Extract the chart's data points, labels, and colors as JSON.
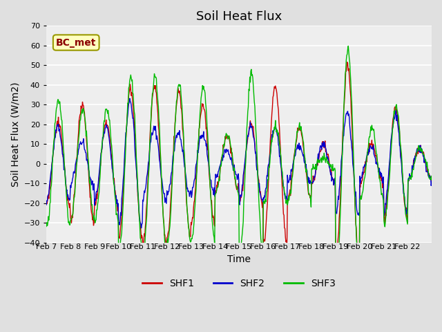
{
  "title": "Soil Heat Flux",
  "xlabel": "Time",
  "ylabel": "Soil Heat Flux (W/m2)",
  "ylim": [
    -40,
    70
  ],
  "yticks": [
    -40,
    -30,
    -20,
    -10,
    0,
    10,
    20,
    30,
    40,
    50,
    60,
    70
  ],
  "annotation": "BC_met",
  "annotation_text_color": "#8B0000",
  "annotation_bg": "#FFFFC0",
  "annotation_edge": "#999900",
  "color_shf1": "#CC0000",
  "color_shf2": "#0000CC",
  "color_shf3": "#00BB00",
  "fig_bg": "#E0E0E0",
  "plot_bg": "#EEEEEE",
  "grid_color": "#FFFFFF",
  "xtick_labels": [
    "Feb 7",
    "Feb 8",
    "Feb 9",
    "Feb 10",
    "Feb 11",
    "Feb 12",
    "Feb 13",
    "Feb 14",
    "Feb 15",
    "Feb 16",
    "Feb 17",
    "Feb 18",
    "Feb 19",
    "Feb 20",
    "Feb 21",
    "Feb 22"
  ],
  "num_days": 16,
  "pts_per_day": 48,
  "title_fontsize": 13,
  "label_fontsize": 10,
  "tick_fontsize": 8,
  "line_width": 1.0,
  "amp1_by_day": [
    21,
    30,
    21,
    38,
    40,
    37,
    30,
    14,
    20,
    40,
    18,
    10,
    50,
    10,
    28,
    8
  ],
  "amp2_by_day": [
    19,
    11,
    19,
    32,
    18,
    16,
    15,
    7,
    19,
    18,
    9,
    10,
    26,
    8,
    25,
    8
  ],
  "amp3_by_day": [
    32,
    28,
    28,
    44,
    45,
    40,
    39,
    15,
    46,
    20,
    19,
    3,
    58,
    18,
    29,
    8
  ]
}
